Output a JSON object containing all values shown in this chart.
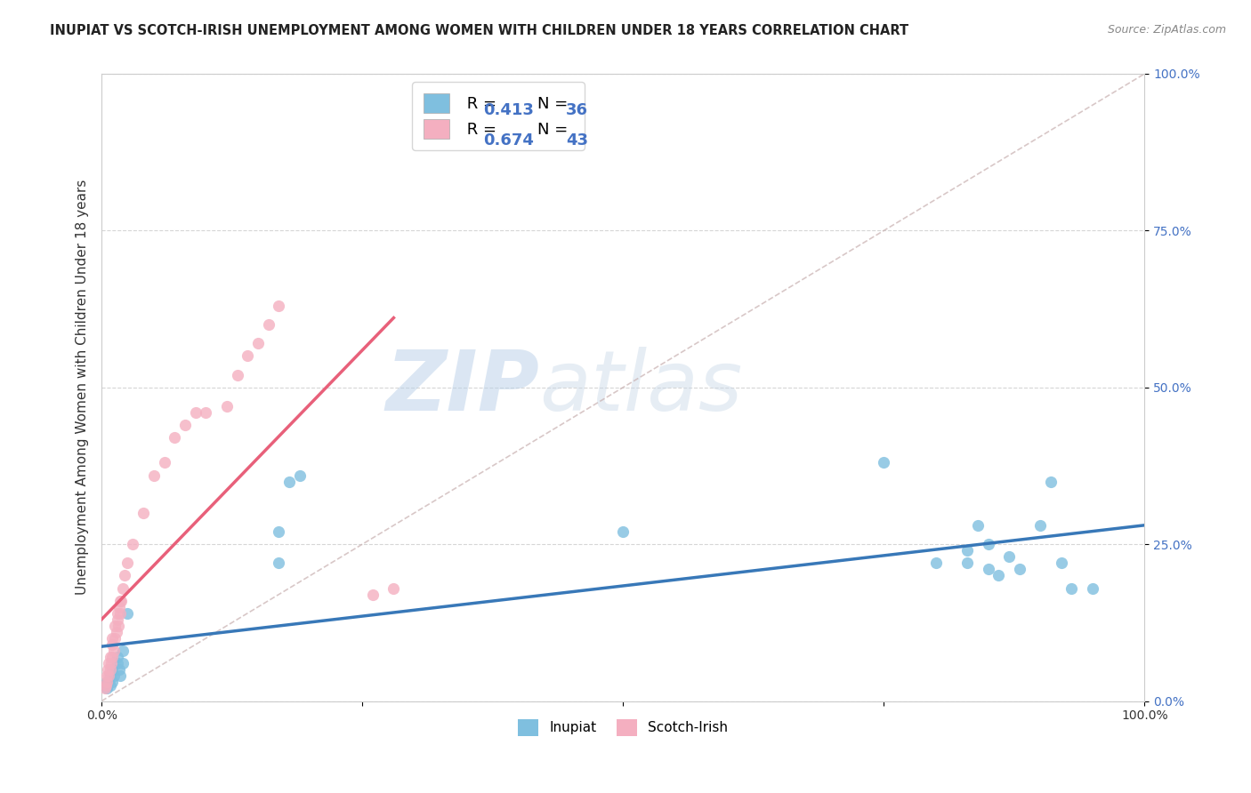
{
  "title": "INUPIAT VS SCOTCH-IRISH UNEMPLOYMENT AMONG WOMEN WITH CHILDREN UNDER 18 YEARS CORRELATION CHART",
  "source": "Source: ZipAtlas.com",
  "ylabel": "Unemployment Among Women with Children Under 18 years",
  "watermark_zip": "ZIP",
  "watermark_atlas": "atlas",
  "xlim": [
    0,
    1
  ],
  "ylim": [
    0,
    1
  ],
  "xticks": [
    0,
    0.25,
    0.5,
    0.75,
    1.0
  ],
  "yticks": [
    0,
    0.25,
    0.5,
    0.75,
    1.0
  ],
  "xticklabels": [
    "0.0%",
    "",
    "",
    "",
    "100.0%"
  ],
  "yticklabels": [
    "0.0%",
    "25.0%",
    "50.0%",
    "75.0%",
    "100.0%"
  ],
  "inupiat_color": "#7fbfdf",
  "scotch_color": "#f4afc0",
  "inupiat_line_color": "#3878b8",
  "scotch_line_color": "#e8607a",
  "R_inupiat": 0.413,
  "N_inupiat": 36,
  "R_scotch": 0.674,
  "N_scotch": 43,
  "inupiat_x": [
    0.005,
    0.005,
    0.005,
    0.007,
    0.008,
    0.008,
    0.01,
    0.01,
    0.012,
    0.015,
    0.015,
    0.017,
    0.018,
    0.02,
    0.02,
    0.025,
    0.17,
    0.17,
    0.18,
    0.19,
    0.5,
    0.75,
    0.8,
    0.83,
    0.83,
    0.84,
    0.85,
    0.85,
    0.86,
    0.87,
    0.88,
    0.9,
    0.91,
    0.92,
    0.93,
    0.95
  ],
  "inupiat_y": [
    0.02,
    0.025,
    0.03,
    0.03,
    0.025,
    0.04,
    0.03,
    0.05,
    0.04,
    0.06,
    0.07,
    0.05,
    0.04,
    0.06,
    0.08,
    0.14,
    0.22,
    0.27,
    0.35,
    0.36,
    0.27,
    0.38,
    0.22,
    0.22,
    0.24,
    0.28,
    0.21,
    0.25,
    0.2,
    0.23,
    0.21,
    0.28,
    0.35,
    0.22,
    0.18,
    0.18
  ],
  "scotch_x": [
    0.003,
    0.004,
    0.005,
    0.005,
    0.006,
    0.007,
    0.007,
    0.008,
    0.008,
    0.009,
    0.01,
    0.01,
    0.01,
    0.012,
    0.013,
    0.013,
    0.014,
    0.015,
    0.015,
    0.016,
    0.017,
    0.018,
    0.018,
    0.019,
    0.02,
    0.022,
    0.025,
    0.03,
    0.04,
    0.05,
    0.06,
    0.07,
    0.08,
    0.09,
    0.1,
    0.12,
    0.13,
    0.14,
    0.15,
    0.16,
    0.17,
    0.26,
    0.28
  ],
  "scotch_y": [
    0.02,
    0.025,
    0.03,
    0.04,
    0.05,
    0.04,
    0.06,
    0.05,
    0.07,
    0.06,
    0.07,
    0.09,
    0.1,
    0.08,
    0.1,
    0.12,
    0.11,
    0.13,
    0.14,
    0.12,
    0.15,
    0.14,
    0.16,
    0.16,
    0.18,
    0.2,
    0.22,
    0.25,
    0.3,
    0.36,
    0.38,
    0.42,
    0.44,
    0.46,
    0.46,
    0.47,
    0.52,
    0.55,
    0.57,
    0.6,
    0.63,
    0.17,
    0.18
  ],
  "background_color": "#ffffff",
  "grid_color": "#cccccc",
  "title_fontsize": 10.5,
  "axis_label_fontsize": 11,
  "tick_fontsize": 10,
  "legend_fontsize": 13,
  "ref_line_color": "#c8b0b0"
}
